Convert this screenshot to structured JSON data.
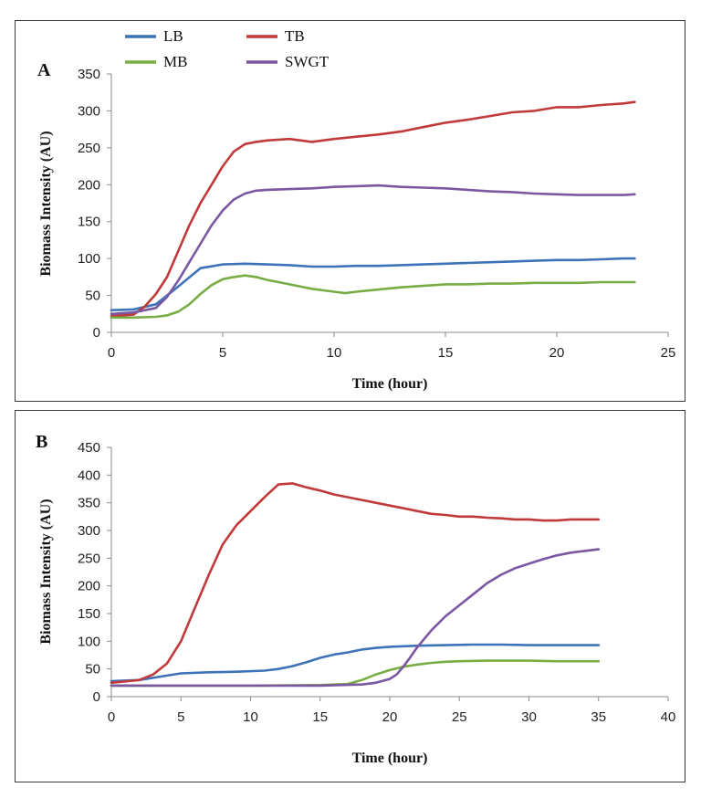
{
  "chart_data": [
    {
      "type": "line",
      "panel_label": "A",
      "xlabel": "Time (hour)",
      "ylabel": "Biomass Intensity (AU)",
      "xlim": [
        0,
        25
      ],
      "ylim": [
        0,
        350
      ],
      "xticks": [
        0,
        5,
        10,
        15,
        20,
        25
      ],
      "yticks": [
        0,
        50,
        100,
        150,
        200,
        250,
        300,
        350
      ],
      "grid": false,
      "legend_position": "top-left",
      "series": [
        {
          "name": "LB",
          "color": "#3e72b8",
          "x": [
            0,
            1,
            2,
            3,
            4,
            5,
            6,
            7,
            8,
            9,
            10,
            11,
            12,
            13,
            14,
            15,
            16,
            17,
            18,
            19,
            20,
            21,
            22,
            23,
            23.5
          ],
          "y": [
            30,
            31,
            38,
            62,
            87,
            92,
            93,
            92,
            91,
            89,
            89,
            90,
            90,
            91,
            92,
            93,
            94,
            95,
            96,
            97,
            98,
            98,
            99,
            100,
            100
          ]
        },
        {
          "name": "TB",
          "color": "#c0393b",
          "x": [
            0,
            1,
            1.5,
            2,
            2.5,
            3,
            3.5,
            4,
            4.5,
            5,
            5.5,
            6,
            6.5,
            7,
            8,
            9,
            10,
            11,
            12,
            13,
            14,
            15,
            16,
            17,
            18,
            19,
            20,
            21,
            22,
            23,
            23.5
          ],
          "y": [
            22,
            24,
            35,
            52,
            75,
            110,
            145,
            175,
            200,
            225,
            245,
            255,
            258,
            260,
            262,
            258,
            262,
            265,
            268,
            272,
            278,
            284,
            288,
            293,
            298,
            300,
            305,
            305,
            308,
            310,
            312
          ]
        },
        {
          "name": "MB",
          "color": "#77ad44",
          "x": [
            0,
            1,
            2,
            2.5,
            3,
            3.5,
            4,
            4.5,
            5,
            5.5,
            6,
            6.5,
            7,
            8,
            9,
            10,
            10.5,
            11,
            12,
            13,
            14,
            15,
            16,
            17,
            18,
            19,
            20,
            21,
            22,
            23,
            23.5
          ],
          "y": [
            20,
            20,
            21,
            23,
            28,
            38,
            52,
            64,
            72,
            75,
            77,
            75,
            71,
            65,
            59,
            55,
            53,
            55,
            58,
            61,
            63,
            65,
            65,
            66,
            66,
            67,
            67,
            67,
            68,
            68,
            68
          ]
        },
        {
          "name": "SWGT",
          "color": "#7b57a1",
          "x": [
            0,
            1,
            2,
            2.5,
            3,
            3.5,
            4,
            4.5,
            5,
            5.5,
            6,
            6.5,
            7,
            8,
            9,
            10,
            11,
            12,
            13,
            14,
            15,
            16,
            17,
            18,
            19,
            20,
            21,
            22,
            23,
            23.5
          ],
          "y": [
            25,
            27,
            33,
            48,
            70,
            95,
            120,
            145,
            165,
            180,
            188,
            192,
            193,
            194,
            195,
            197,
            198,
            199,
            197,
            196,
            195,
            193,
            191,
            190,
            188,
            187,
            186,
            186,
            186,
            187
          ]
        }
      ]
    },
    {
      "type": "line",
      "panel_label": "B",
      "xlabel": "Time (hour)",
      "ylabel": "Biomass Intensity (AU)",
      "xlim": [
        0,
        40
      ],
      "ylim": [
        0,
        450
      ],
      "xticks": [
        0,
        5,
        10,
        15,
        20,
        25,
        30,
        35,
        40
      ],
      "yticks": [
        0,
        50,
        100,
        150,
        200,
        250,
        300,
        350,
        400,
        450
      ],
      "grid": false,
      "series": [
        {
          "name": "LB",
          "color": "#3e72b8",
          "x": [
            0,
            2,
            4,
            5,
            7,
            9,
            11,
            12,
            13,
            14,
            15,
            16,
            17,
            18,
            19,
            20,
            22,
            24,
            26,
            28,
            30,
            32,
            34,
            35
          ],
          "y": [
            28,
            30,
            38,
            42,
            44,
            45,
            47,
            50,
            55,
            62,
            70,
            76,
            80,
            85,
            88,
            90,
            92,
            93,
            94,
            94,
            93,
            93,
            93,
            93
          ]
        },
        {
          "name": "TB",
          "color": "#c0393b",
          "x": [
            0,
            2,
            3,
            4,
            5,
            6,
            7,
            8,
            9,
            10,
            11,
            12,
            13,
            14,
            15,
            16,
            17,
            18,
            19,
            20,
            21,
            22,
            23,
            24,
            25,
            26,
            27,
            28,
            29,
            30,
            31,
            32,
            33,
            34,
            35
          ],
          "y": [
            25,
            30,
            40,
            60,
            100,
            160,
            220,
            275,
            310,
            335,
            360,
            383,
            385,
            378,
            372,
            365,
            360,
            355,
            350,
            345,
            340,
            335,
            330,
            328,
            325,
            325,
            323,
            322,
            320,
            320,
            318,
            318,
            320,
            320,
            320
          ]
        },
        {
          "name": "MB",
          "color": "#77ad44",
          "x": [
            0,
            5,
            10,
            15,
            17,
            18,
            19,
            20,
            21,
            22,
            23,
            24,
            25,
            27,
            30,
            32,
            35
          ],
          "y": [
            20,
            20,
            20,
            21,
            23,
            30,
            40,
            48,
            54,
            58,
            61,
            63,
            64,
            65,
            65,
            64,
            64
          ]
        },
        {
          "name": "SWGT",
          "color": "#7b57a1",
          "x": [
            0,
            5,
            10,
            15,
            18,
            19,
            20,
            20.5,
            21,
            21.5,
            22,
            23,
            24,
            25,
            26,
            27,
            28,
            29,
            30,
            31,
            32,
            33,
            34,
            35
          ],
          "y": [
            20,
            20,
            20,
            20,
            22,
            25,
            32,
            40,
            55,
            72,
            90,
            120,
            145,
            165,
            185,
            205,
            220,
            232,
            240,
            248,
            255,
            260,
            263,
            266
          ]
        }
      ]
    }
  ]
}
